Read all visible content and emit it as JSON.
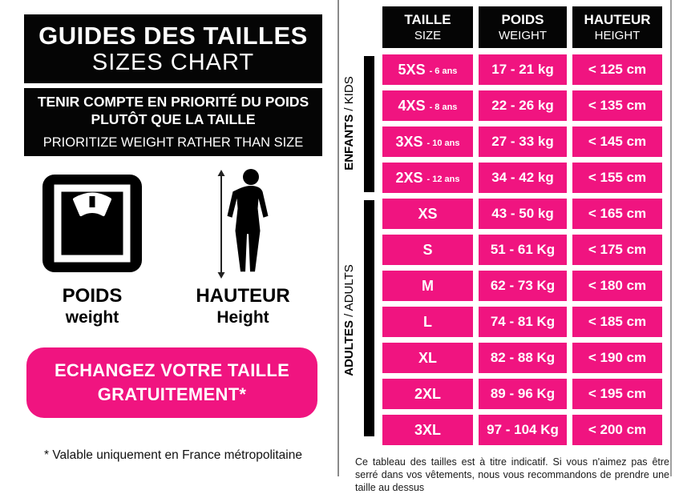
{
  "colors": {
    "pink": "#F01480",
    "black": "#050505"
  },
  "left_panel": {
    "title_fr": "GUIDES DES TAILLES",
    "title_en": "SIZES CHART",
    "notice_fr_line1": "TENIR COMPTE EN PRIORITÉ DU POIDS",
    "notice_fr_line2": "PLUTÔT QUE LA TAILLE",
    "notice_en": "PRIORITIZE WEIGHT RATHER THAN SIZE",
    "weight_label_fr": "POIDS",
    "weight_label_en": "weight",
    "height_label_fr": "HAUTEUR",
    "height_label_en": "Height",
    "exchange_line1": "ECHANGEZ VOTRE TAILLE",
    "exchange_line2": "GRATUITEMENT*",
    "footnote": "* Valable uniquement en France métropolitaine"
  },
  "table": {
    "headers": [
      {
        "fr": "TAILLE",
        "en": "SIZE"
      },
      {
        "fr": "POIDS",
        "en": "WEIGHT"
      },
      {
        "fr": "HAUTEUR",
        "en": "HEIGHT"
      }
    ],
    "groups": [
      {
        "fr": "ENFANTS",
        "sep": " / ",
        "en": "KIDS"
      },
      {
        "fr": "ADULTES",
        "sep": " / ",
        "en": "ADULTS"
      }
    ],
    "rows": [
      {
        "group": "kids",
        "size": "5XS",
        "age": "- 6 ans",
        "weight": "17 - 21 kg",
        "height": "< 125 cm"
      },
      {
        "group": "kids",
        "size": "4XS",
        "age": "- 8 ans",
        "weight": "22 - 26 kg",
        "height": "< 135 cm"
      },
      {
        "group": "kids",
        "size": "3XS",
        "age": "- 10 ans",
        "weight": "27 - 33 kg",
        "height": "< 145 cm"
      },
      {
        "group": "kids",
        "size": "2XS",
        "age": "- 12 ans",
        "weight": "34 - 42 kg",
        "height": "< 155 cm"
      },
      {
        "group": "adults",
        "size": "XS",
        "age": "",
        "weight": "43 - 50 kg",
        "height": "< 165 cm"
      },
      {
        "group": "adults",
        "size": "S",
        "age": "",
        "weight": "51 - 61 Kg",
        "height": "< 175 cm"
      },
      {
        "group": "adults",
        "size": "M",
        "age": "",
        "weight": "62 - 73 Kg",
        "height": "< 180 cm"
      },
      {
        "group": "adults",
        "size": "L",
        "age": "",
        "weight": "74 - 81 Kg",
        "height": "< 185 cm"
      },
      {
        "group": "adults",
        "size": "XL",
        "age": "",
        "weight": "82 - 88 Kg",
        "height": "< 190 cm"
      },
      {
        "group": "adults",
        "size": "2XL",
        "age": "",
        "weight": "89 - 96 Kg",
        "height": "< 195 cm"
      },
      {
        "group": "adults",
        "size": "3XL",
        "age": "",
        "weight": "97 - 104 Kg",
        "height": "< 200 cm"
      }
    ]
  },
  "footer_note": "Ce tableau des tailles est à titre indicatif. Si vous n'aimez pas être serré dans vos vêtements, nous vous recommandons de prendre une taille au dessus",
  "chart_data": {
    "type": "table",
    "title": "GUIDES DES TAILLES / SIZES CHART",
    "columns": [
      "TAILLE / SIZE",
      "POIDS / WEIGHT",
      "HAUTEUR / HEIGHT"
    ],
    "groups": [
      {
        "name": "ENFANTS / KIDS",
        "rows": [
          [
            "5XS - 6 ans",
            "17 - 21 kg",
            "< 125 cm"
          ],
          [
            "4XS - 8 ans",
            "22 - 26 kg",
            "< 135 cm"
          ],
          [
            "3XS - 10 ans",
            "27 - 33 kg",
            "< 145 cm"
          ],
          [
            "2XS - 12 ans",
            "34 - 42 kg",
            "< 155 cm"
          ]
        ]
      },
      {
        "name": "ADULTES / ADULTS",
        "rows": [
          [
            "XS",
            "43 - 50 kg",
            "< 165 cm"
          ],
          [
            "S",
            "51 - 61 Kg",
            "< 175 cm"
          ],
          [
            "M",
            "62 - 73 Kg",
            "< 180 cm"
          ],
          [
            "L",
            "74 - 81 Kg",
            "< 185 cm"
          ],
          [
            "XL",
            "82 - 88 Kg",
            "< 190 cm"
          ],
          [
            "2XL",
            "89 - 96 Kg",
            "< 195 cm"
          ],
          [
            "3XL",
            "97 - 104 Kg",
            "< 200 cm"
          ]
        ]
      }
    ]
  }
}
